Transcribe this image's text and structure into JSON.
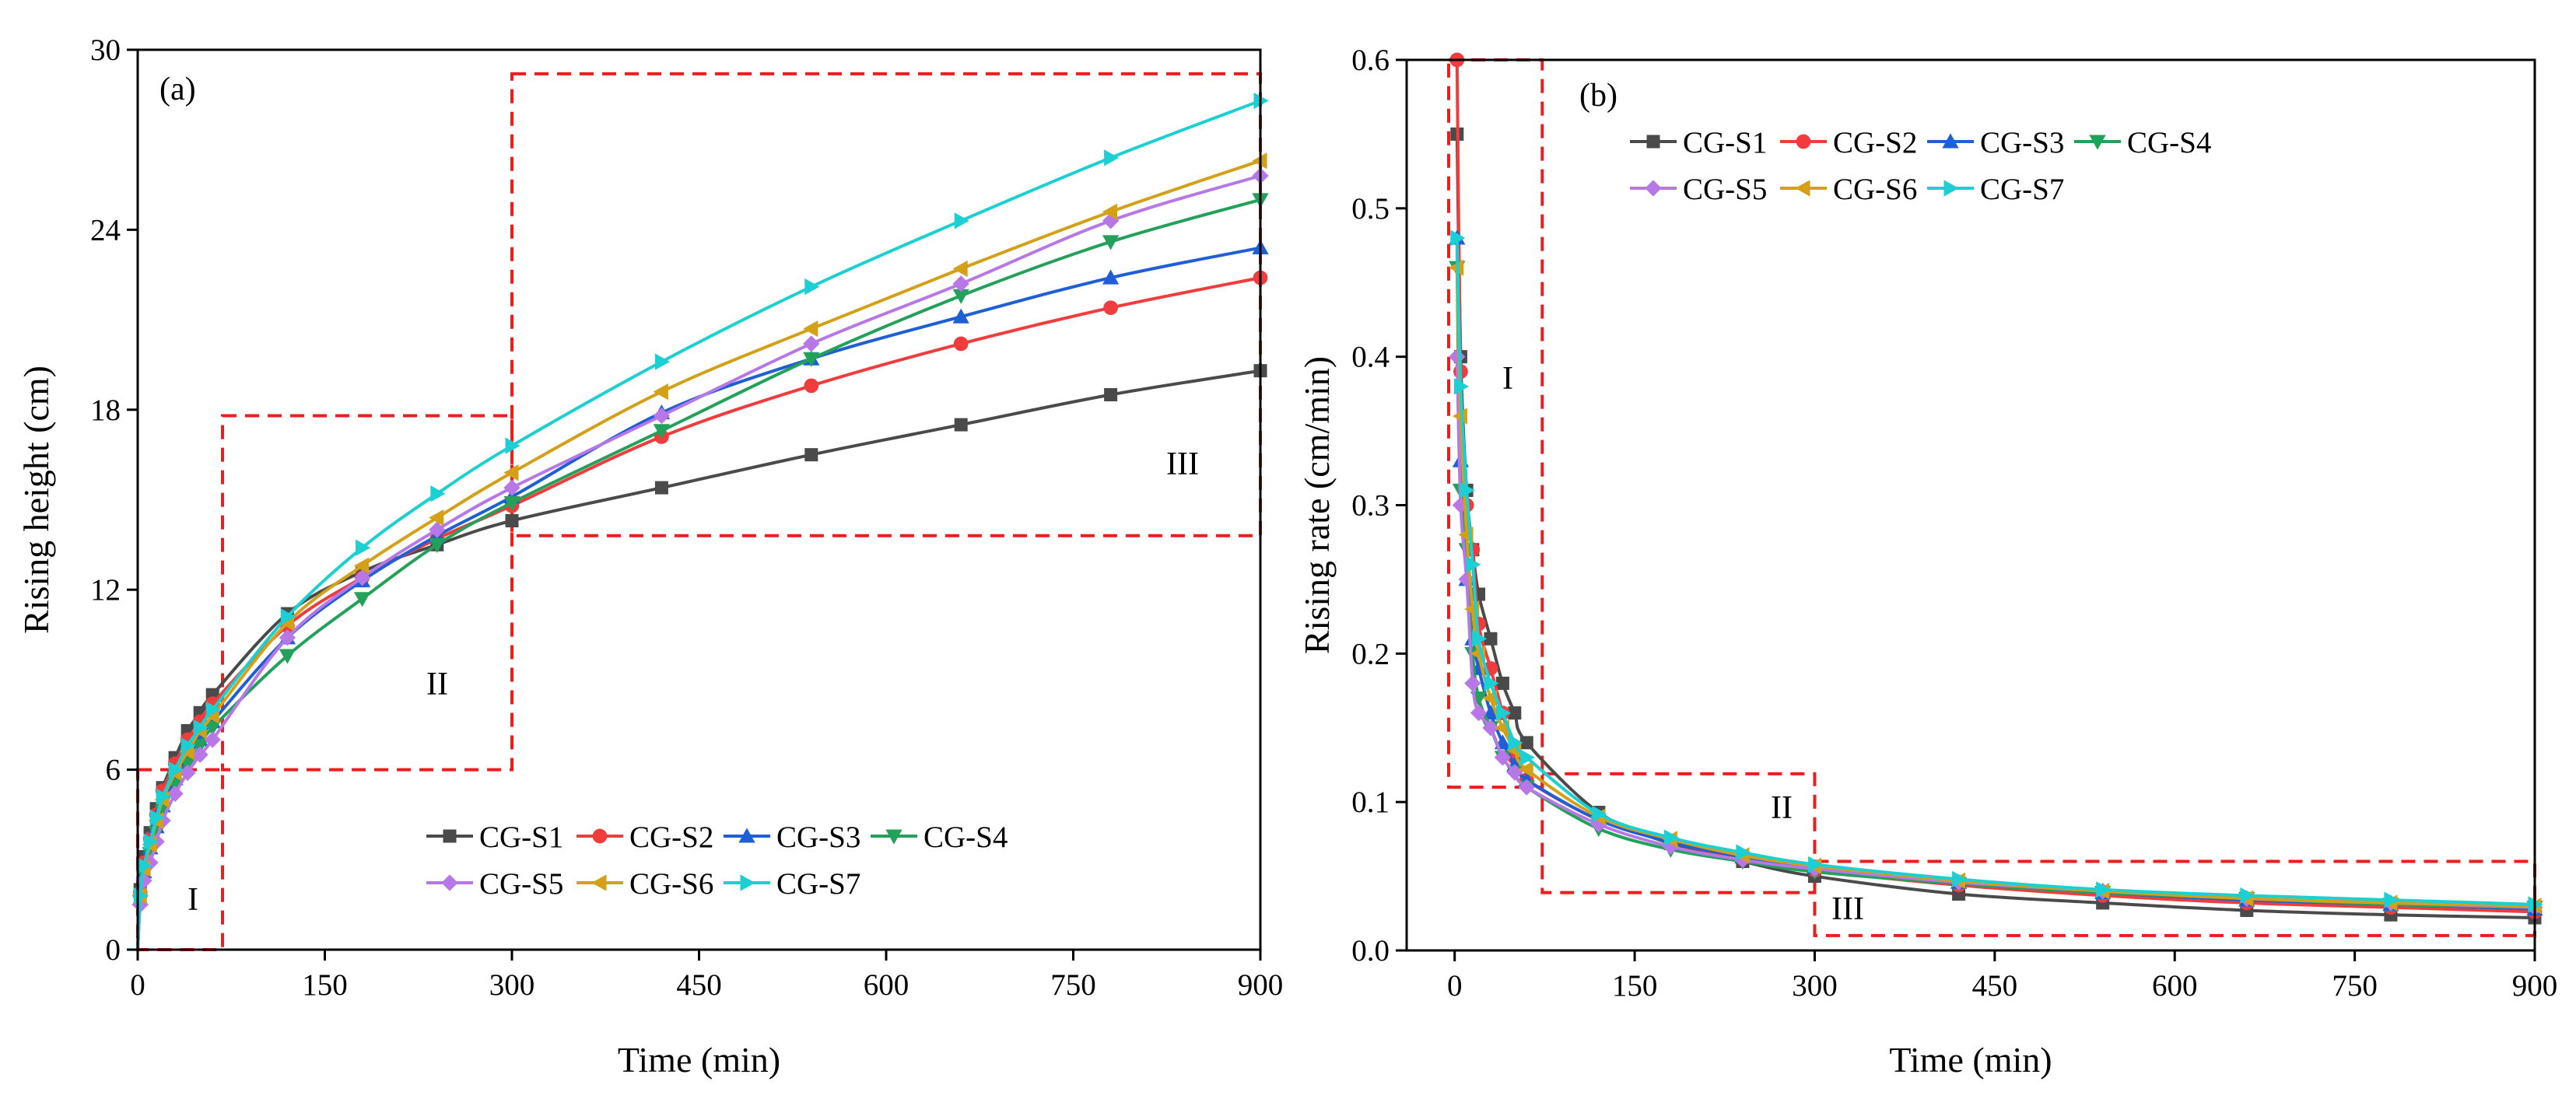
{
  "colors": {
    "CG-S1": "#4a4a4a",
    "CG-S2": "#f03c3c",
    "CG-S3": "#1f5fd6",
    "CG-S4": "#23a05a",
    "CG-S5": "#b877e6",
    "CG-S6": "#d4a017",
    "CG-S7": "#1ccfd2",
    "zone_box": "#ee1c1c"
  },
  "chart_data": [
    {
      "type": "line",
      "panel_label": "(a)",
      "title": "",
      "xlabel": "Time (min)",
      "ylabel": "Rising height (cm)",
      "xlim": [
        0,
        900
      ],
      "ylim": [
        0,
        30
      ],
      "xticks": [
        0,
        150,
        300,
        450,
        600,
        750,
        900
      ],
      "yticks": [
        0,
        6,
        12,
        18,
        24,
        30
      ],
      "legend_position": "lower-right",
      "zones": [
        {
          "label": "I",
          "x": [
            0,
            68
          ],
          "y": [
            0,
            6
          ]
        },
        {
          "label": "II",
          "x": [
            68,
            300
          ],
          "y": [
            6,
            17.8
          ]
        },
        {
          "label": "III",
          "x": [
            300,
            900
          ],
          "y": [
            13.8,
            29.2
          ]
        }
      ],
      "x": [
        0,
        2,
        5,
        10,
        15,
        20,
        30,
        40,
        50,
        60,
        120,
        180,
        240,
        300,
        420,
        540,
        660,
        780,
        900
      ],
      "series": [
        {
          "name": "CG-S1",
          "marker": "square",
          "values": [
            0,
            2.0,
            3.1,
            3.9,
            4.7,
            5.4,
            6.4,
            7.3,
            7.9,
            8.5,
            11.2,
            12.6,
            13.5,
            14.3,
            15.4,
            16.5,
            17.5,
            18.5,
            19.3
          ]
        },
        {
          "name": "CG-S2",
          "marker": "circle",
          "values": [
            0,
            1.9,
            2.9,
            3.7,
            4.5,
            5.3,
            6.2,
            7.0,
            7.6,
            8.2,
            10.8,
            12.4,
            13.7,
            14.8,
            17.1,
            18.8,
            20.2,
            21.4,
            22.4
          ]
        },
        {
          "name": "CG-S3",
          "marker": "triangle-up",
          "values": [
            0,
            1.7,
            2.6,
            3.4,
            4.1,
            4.8,
            5.7,
            6.4,
            7.0,
            7.6,
            10.4,
            12.3,
            13.8,
            15.1,
            17.9,
            19.7,
            21.1,
            22.4,
            23.4
          ]
        },
        {
          "name": "CG-S4",
          "marker": "triangle-down",
          "values": [
            0,
            1.6,
            2.5,
            3.2,
            3.9,
            4.6,
            5.5,
            6.2,
            6.8,
            7.4,
            9.8,
            11.7,
            13.5,
            14.9,
            17.3,
            19.7,
            21.8,
            23.6,
            25.0
          ]
        },
        {
          "name": "CG-S5",
          "marker": "diamond",
          "values": [
            0,
            1.5,
            2.3,
            2.9,
            3.6,
            4.3,
            5.2,
            5.9,
            6.5,
            7.0,
            10.4,
            12.4,
            14.0,
            15.4,
            17.8,
            20.2,
            22.2,
            24.3,
            25.8
          ]
        },
        {
          "name": "CG-S6",
          "marker": "triangle-left",
          "values": [
            0,
            1.8,
            2.7,
            3.5,
            4.3,
            5.0,
            5.9,
            6.6,
            7.3,
            7.8,
            10.9,
            12.8,
            14.4,
            15.9,
            18.6,
            20.7,
            22.7,
            24.6,
            26.3
          ]
        },
        {
          "name": "CG-S7",
          "marker": "triangle-right",
          "values": [
            0,
            1.8,
            2.8,
            3.6,
            4.4,
            5.1,
            6.0,
            6.8,
            7.4,
            8.0,
            11.1,
            13.4,
            15.2,
            16.8,
            19.6,
            22.1,
            24.3,
            26.4,
            28.3
          ]
        }
      ]
    },
    {
      "type": "line",
      "panel_label": "(b)",
      "title": "",
      "xlabel": "Time (min)",
      "ylabel": "Rising rate (cm/min)",
      "xlim": [
        -40,
        900
      ],
      "ylim": [
        0,
        0.6
      ],
      "xticks": [
        0,
        150,
        300,
        450,
        600,
        750,
        900
      ],
      "yticks": [
        0.0,
        0.1,
        0.2,
        0.3,
        0.4,
        0.5,
        0.6
      ],
      "ytick_labels": [
        "0.0",
        "0.1",
        "0.2",
        "0.3",
        "0.4",
        "0.5",
        "0.6"
      ],
      "legend_position": "top-right",
      "zones": [
        {
          "label": "I",
          "x": [
            -5,
            73
          ],
          "y": [
            0.11,
            0.6
          ]
        },
        {
          "label": "II",
          "x": [
            73,
            300
          ],
          "y": [
            0.039,
            0.119
          ]
        },
        {
          "label": "III",
          "x": [
            300,
            900
          ],
          "y": [
            0.01,
            0.06
          ]
        }
      ],
      "x": [
        2,
        5,
        10,
        15,
        20,
        30,
        40,
        50,
        60,
        120,
        180,
        240,
        300,
        420,
        540,
        660,
        780,
        900
      ],
      "series": [
        {
          "name": "CG-S1",
          "marker": "square",
          "values": [
            0.55,
            0.4,
            0.31,
            0.27,
            0.24,
            0.21,
            0.18,
            0.16,
            0.14,
            0.093,
            0.072,
            0.06,
            0.05,
            0.038,
            0.032,
            0.027,
            0.024,
            0.022
          ]
        },
        {
          "name": "CG-S2",
          "marker": "circle",
          "values": [
            0.6,
            0.39,
            0.3,
            0.27,
            0.22,
            0.19,
            0.16,
            0.13,
            0.115,
            0.088,
            0.073,
            0.062,
            0.054,
            0.044,
            0.037,
            0.032,
            0.029,
            0.026
          ]
        },
        {
          "name": "CG-S3",
          "marker": "triangle-up",
          "values": [
            0.48,
            0.33,
            0.25,
            0.21,
            0.19,
            0.16,
            0.14,
            0.125,
            0.115,
            0.088,
            0.073,
            0.063,
            0.056,
            0.046,
            0.039,
            0.034,
            0.031,
            0.028
          ]
        },
        {
          "name": "CG-S4",
          "marker": "triangle-down",
          "values": [
            0.46,
            0.31,
            0.27,
            0.2,
            0.17,
            0.15,
            0.13,
            0.12,
            0.11,
            0.082,
            0.068,
            0.06,
            0.053,
            0.045,
            0.039,
            0.035,
            0.031,
            0.029
          ]
        },
        {
          "name": "CG-S5",
          "marker": "diamond",
          "values": [
            0.4,
            0.3,
            0.25,
            0.18,
            0.16,
            0.15,
            0.13,
            0.12,
            0.11,
            0.085,
            0.07,
            0.061,
            0.055,
            0.046,
            0.04,
            0.035,
            0.032,
            0.029
          ]
        },
        {
          "name": "CG-S6",
          "marker": "triangle-left",
          "values": [
            0.46,
            0.36,
            0.28,
            0.23,
            0.2,
            0.17,
            0.15,
            0.135,
            0.122,
            0.09,
            0.075,
            0.064,
            0.057,
            0.047,
            0.04,
            0.035,
            0.032,
            0.03
          ]
        },
        {
          "name": "CG-S7",
          "marker": "triangle-right",
          "values": [
            0.48,
            0.38,
            0.31,
            0.26,
            0.21,
            0.18,
            0.16,
            0.14,
            0.13,
            0.092,
            0.076,
            0.066,
            0.058,
            0.048,
            0.041,
            0.037,
            0.034,
            0.031
          ]
        }
      ]
    }
  ]
}
